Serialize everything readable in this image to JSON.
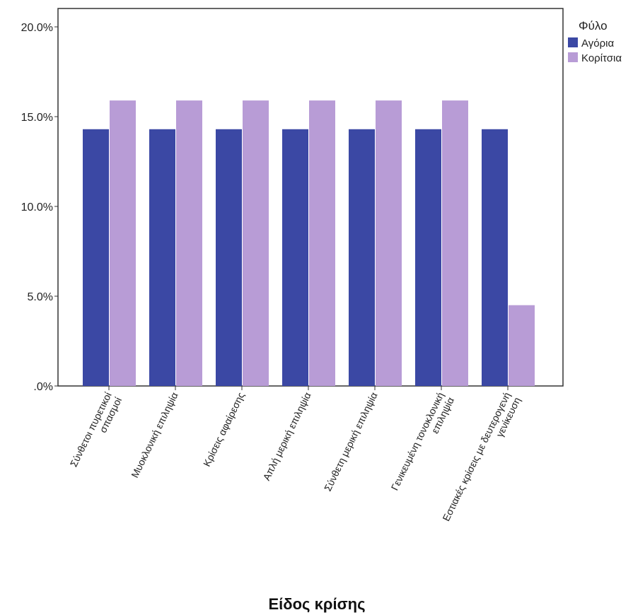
{
  "chart_data": {
    "type": "bar",
    "title": "",
    "xlabel": "Είδος κρίσης",
    "ylabel": "",
    "ylim": [
      0,
      20
    ],
    "yticks": [
      0,
      5,
      10,
      15,
      20
    ],
    "ytick_labels": [
      ".0%",
      "5.0%",
      "10.0%",
      "15.0%",
      "20.0%"
    ],
    "categories": [
      [
        "Σύνθετοι πυρετικοί",
        "σπασμοί"
      ],
      [
        "Μυοκλονική επιληψία"
      ],
      [
        "Κρίσεις αφαίρεσης"
      ],
      [
        "Απλή μερική επιληψία"
      ],
      [
        "Σύνθετη μερική επιληψία"
      ],
      [
        "Γενικευμένη τονοκλονική",
        "επιληψία"
      ],
      [
        "Εστιακές κρίσεις με δευτερογενή",
        "γενίκευση"
      ]
    ],
    "series": [
      {
        "name": "Αγόρια",
        "color": "#3b48a4",
        "values": [
          14.3,
          14.3,
          14.3,
          14.3,
          14.3,
          14.3,
          14.3
        ]
      },
      {
        "name": "Κορίτσια",
        "color": "#b89cd6",
        "values": [
          15.9,
          15.9,
          15.9,
          15.9,
          15.9,
          15.9,
          4.5
        ]
      }
    ],
    "legend": {
      "title": "Φύλο",
      "position": "right"
    },
    "grid": false
  }
}
